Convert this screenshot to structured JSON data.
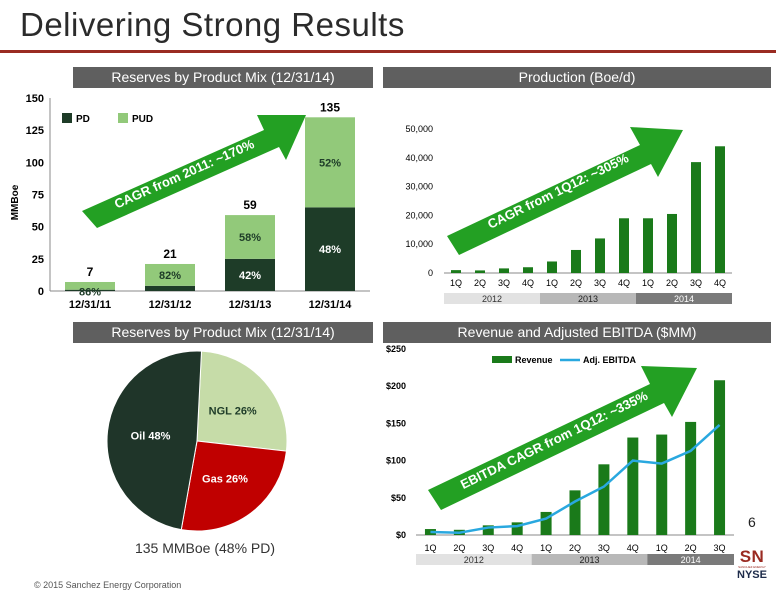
{
  "page": {
    "title": "Delivering Strong Results",
    "footer": "© 2015 Sanchez Energy Corporation",
    "page_number": "6",
    "logo": {
      "letters": "SN",
      "subtext": "SANCHEZ ENERGY",
      "exchange": "NYSE"
    }
  },
  "colors": {
    "dark_green": "#1e3c28",
    "light_green": "#92c97a",
    "bright_green": "#1a7a1a",
    "arrow_green": "#23a023",
    "line_blue": "#29a8df",
    "gas_red": "#c00000",
    "ngl_green": "#c6dca8",
    "oil": "#1f3529"
  },
  "chart_data": [
    {
      "type": "bar",
      "title": "Reserves by Product Mix (12/31/14)",
      "ylabel": "MMBoe",
      "categories": [
        "12/31/11",
        "12/31/12",
        "12/31/13",
        "12/31/14"
      ],
      "series": [
        {
          "name": "PD",
          "values": [
            1,
            4,
            25,
            65
          ],
          "color": "#1e3c28",
          "labels": [
            "",
            "",
            "42%",
            "48%"
          ]
        },
        {
          "name": "PUD",
          "values": [
            6,
            17,
            34,
            70
          ],
          "color": "#92c97a",
          "labels": [
            "86%",
            "82%",
            "58%",
            "52%"
          ]
        }
      ],
      "totals": [
        "7",
        "21",
        "59",
        "135"
      ],
      "ylim": [
        0,
        150
      ],
      "yticks": [
        "0",
        "25",
        "50",
        "75",
        "100",
        "125",
        "150"
      ],
      "legend": "top-left",
      "annotation": "CAGR from 2011: ~170%"
    },
    {
      "type": "bar",
      "title": "Production (Boe/d)",
      "categories": [
        "1Q",
        "2Q",
        "3Q",
        "4Q",
        "1Q",
        "2Q",
        "3Q",
        "4Q",
        "1Q",
        "2Q",
        "3Q",
        "4Q"
      ],
      "groups": [
        "2012",
        "2013",
        "2014"
      ],
      "values": [
        1000,
        900,
        1600,
        2000,
        4000,
        8000,
        12000,
        19000,
        19000,
        20500,
        38500,
        44000
      ],
      "ylim": [
        0,
        50000
      ],
      "yticks": [
        "0",
        "10,000",
        "20,000",
        "30,000",
        "40,000",
        "50,000"
      ],
      "annotation": "CAGR from 1Q12: ~305%"
    },
    {
      "type": "pie",
      "title": "Reserves by Product Mix (12/31/14)",
      "slices": [
        {
          "label": "Oil 48%",
          "value": 48,
          "color": "#1f3529"
        },
        {
          "label": "NGL 26%",
          "value": 26,
          "color": "#c6dca8"
        },
        {
          "label": "Gas 26%",
          "value": 26,
          "color": "#c00000"
        }
      ],
      "caption": "135 MMBoe (48% PD)"
    },
    {
      "type": "bar",
      "title": "Revenue and Adjusted EBITDA ($MM)",
      "categories": [
        "1Q",
        "2Q",
        "3Q",
        "4Q",
        "1Q",
        "2Q",
        "3Q",
        "4Q",
        "1Q",
        "2Q",
        "3Q"
      ],
      "groups": [
        "2012",
        "2013",
        "2014"
      ],
      "series": [
        {
          "name": "Revenue",
          "type": "bar",
          "values": [
            8,
            7,
            13,
            17,
            31,
            60,
            95,
            131,
            135,
            152,
            208
          ]
        },
        {
          "name": "Adj. EBITDA",
          "type": "line",
          "values": [
            4,
            3,
            10,
            12,
            22,
            45,
            65,
            100,
            96,
            113,
            148
          ]
        }
      ],
      "ylim": [
        0,
        250
      ],
      "yticks": [
        "$0",
        "$50",
        "$100",
        "$150",
        "$200",
        "$250"
      ],
      "legend": "top",
      "annotation": "EBITDA CAGR from 1Q12: ~335%"
    }
  ]
}
